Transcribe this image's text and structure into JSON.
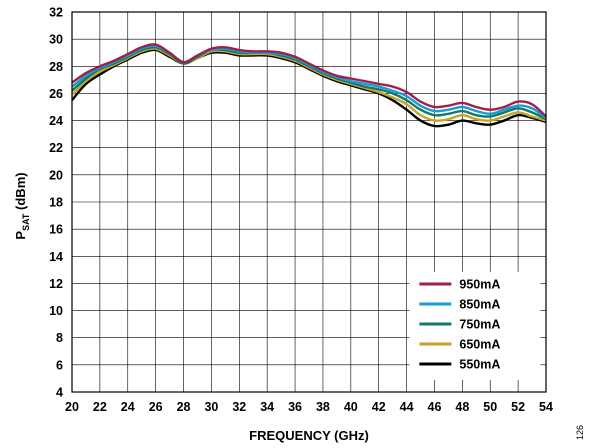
{
  "chart_data": {
    "type": "line",
    "title": "",
    "xlabel": "FREQUENCY (GHz)",
    "ylabel_main": "P",
    "ylabel_sub": "SAT",
    "ylabel_rest": " (dBm)",
    "xlim": [
      20,
      54
    ],
    "ylim": [
      4,
      32
    ],
    "xticks": [
      20,
      22,
      24,
      26,
      28,
      30,
      32,
      34,
      36,
      38,
      40,
      42,
      44,
      46,
      48,
      50,
      52,
      54
    ],
    "yticks": [
      4,
      6,
      8,
      10,
      12,
      14,
      16,
      18,
      20,
      22,
      24,
      26,
      28,
      30,
      32
    ],
    "grid": true,
    "legend_position": "bottom-right",
    "x": [
      20,
      21,
      22,
      23,
      24,
      25,
      26,
      27,
      28,
      29,
      30,
      31,
      32,
      33,
      34,
      35,
      36,
      37,
      38,
      39,
      40,
      41,
      42,
      43,
      44,
      45,
      46,
      47,
      48,
      49,
      50,
      51,
      52,
      53,
      54
    ],
    "series": [
      {
        "name": "950mA",
        "color": "#a0204a",
        "values": [
          26.8,
          27.5,
          28.0,
          28.4,
          28.9,
          29.4,
          29.6,
          29.0,
          28.3,
          28.8,
          29.3,
          29.4,
          29.2,
          29.1,
          29.1,
          29.0,
          28.7,
          28.2,
          27.7,
          27.3,
          27.1,
          26.9,
          26.7,
          26.5,
          26.1,
          25.4,
          25.0,
          25.1,
          25.3,
          25.0,
          24.8,
          25.0,
          25.4,
          25.2,
          24.3
        ]
      },
      {
        "name": "850mA",
        "color": "#1a9bd7",
        "values": [
          26.5,
          27.3,
          27.9,
          28.3,
          28.8,
          29.3,
          29.5,
          29.0,
          28.3,
          28.8,
          29.2,
          29.3,
          29.1,
          29.0,
          29.0,
          28.9,
          28.6,
          28.1,
          27.6,
          27.2,
          26.9,
          26.7,
          26.5,
          26.2,
          25.8,
          25.1,
          24.7,
          24.8,
          25.0,
          24.7,
          24.5,
          24.8,
          25.1,
          24.9,
          24.2
        ]
      },
      {
        "name": "750mA",
        "color": "#0e7a6a",
        "values": [
          26.2,
          27.1,
          27.8,
          28.2,
          28.7,
          29.2,
          29.4,
          28.9,
          28.2,
          28.7,
          29.2,
          29.2,
          29.0,
          29.0,
          29.0,
          28.8,
          28.5,
          28.0,
          27.5,
          27.1,
          26.8,
          26.5,
          26.3,
          26.0,
          25.5,
          24.8,
          24.4,
          24.5,
          24.7,
          24.4,
          24.3,
          24.6,
          24.9,
          24.6,
          24.1
        ]
      },
      {
        "name": "650mA",
        "color": "#c9a227",
        "values": [
          25.9,
          26.9,
          27.6,
          28.1,
          28.6,
          29.1,
          29.3,
          28.8,
          28.2,
          28.6,
          29.1,
          29.1,
          28.9,
          28.9,
          28.9,
          28.7,
          28.4,
          27.9,
          27.4,
          27.0,
          26.7,
          26.4,
          26.1,
          25.7,
          25.2,
          24.4,
          24.0,
          24.1,
          24.4,
          24.1,
          24.0,
          24.3,
          24.6,
          24.3,
          24.0
        ]
      },
      {
        "name": "550mA",
        "color": "#000000",
        "values": [
          25.5,
          26.7,
          27.4,
          28.0,
          28.5,
          29.0,
          29.2,
          28.7,
          28.2,
          28.6,
          29.0,
          29.0,
          28.8,
          28.8,
          28.8,
          28.6,
          28.3,
          27.8,
          27.3,
          26.9,
          26.6,
          26.3,
          26.0,
          25.5,
          24.8,
          24.0,
          23.6,
          23.7,
          24.0,
          23.8,
          23.7,
          24.0,
          24.4,
          24.2,
          23.9
        ]
      }
    ]
  },
  "side_note": "126"
}
